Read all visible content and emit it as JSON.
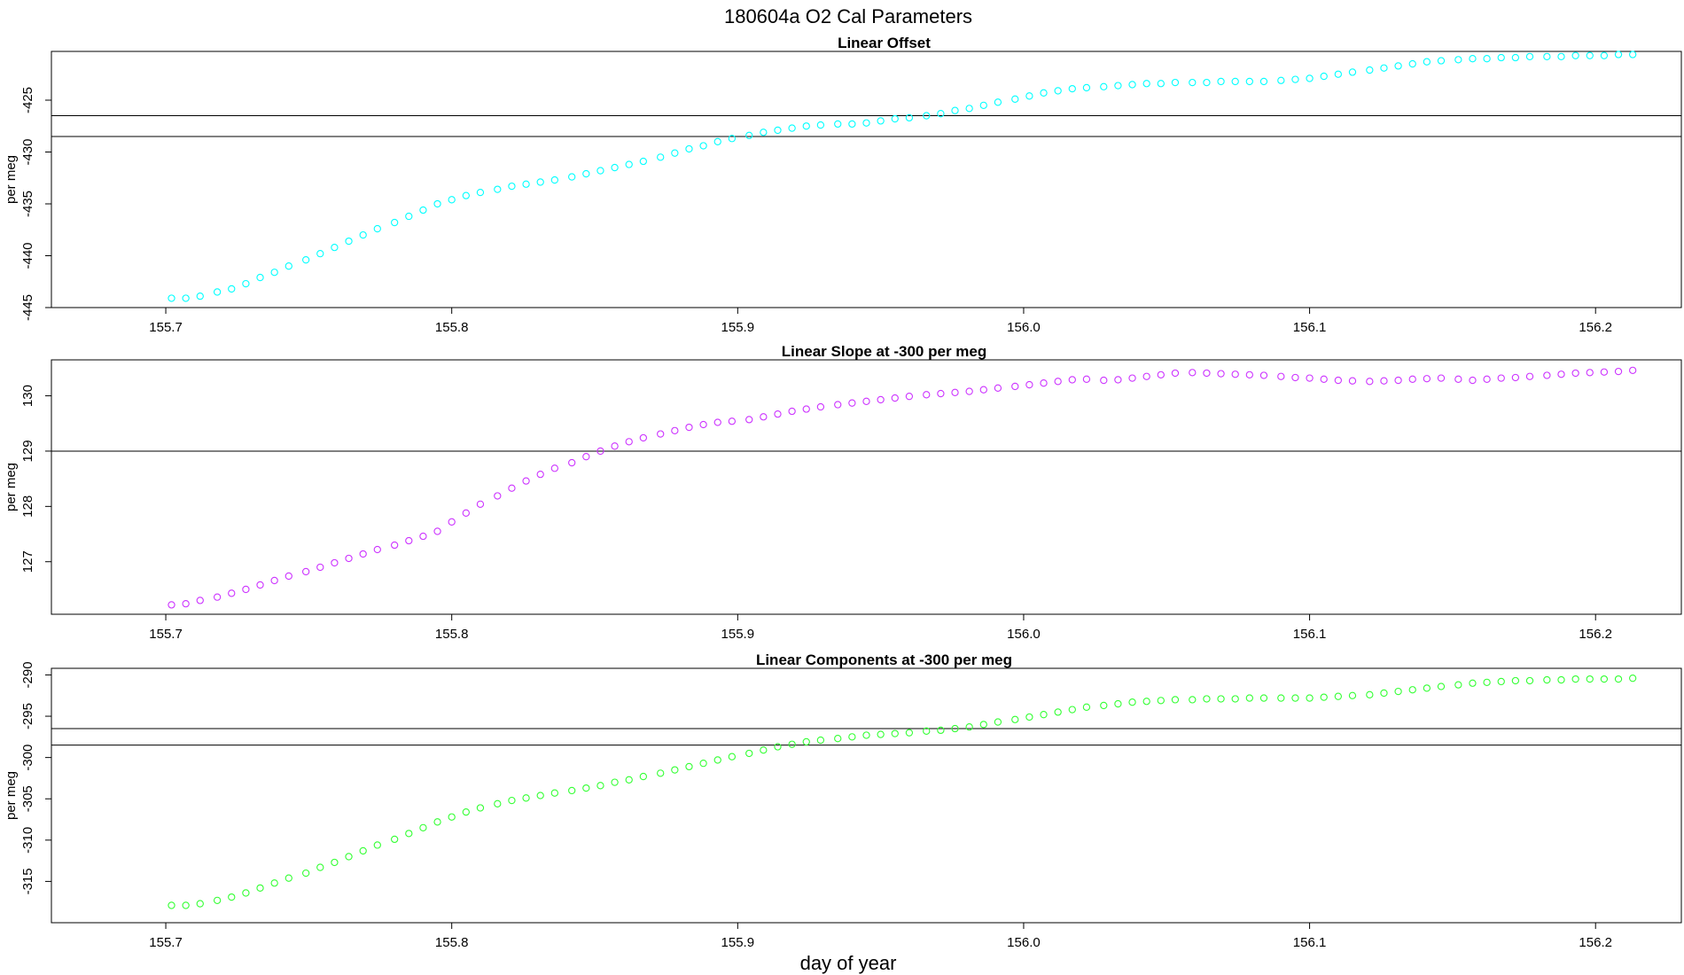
{
  "figure": {
    "title": "180604a   O2 Cal Parameters",
    "xlabel": "day of year"
  },
  "chart_data": [
    {
      "type": "scatter",
      "title": "Linear Offset",
      "ylabel": "per meg",
      "color": "#00ffff",
      "xlim": [
        155.66,
        156.23
      ],
      "ylim": [
        -445,
        -420.3
      ],
      "x_ticks": [
        155.7,
        155.8,
        155.9,
        156.0,
        156.1,
        156.2
      ],
      "x_tick_labels": [
        "155.7",
        "155.8",
        "155.9",
        "156.0",
        "156.1",
        "156.2"
      ],
      "y_ticks": [
        -445,
        -440,
        -435,
        -430,
        -425
      ],
      "y_tick_labels": [
        "-445",
        "-440",
        "-435",
        "-430",
        "-425"
      ],
      "hlines": [
        -426.5,
        -428.5
      ],
      "x": [
        155.702,
        155.707,
        155.712,
        155.718,
        155.723,
        155.728,
        155.733,
        155.738,
        155.743,
        155.749,
        155.754,
        155.759,
        155.764,
        155.769,
        155.774,
        155.78,
        155.785,
        155.79,
        155.795,
        155.8,
        155.805,
        155.81,
        155.816,
        155.821,
        155.826,
        155.831,
        155.836,
        155.842,
        155.847,
        155.852,
        155.857,
        155.862,
        155.867,
        155.873,
        155.878,
        155.883,
        155.888,
        155.893,
        155.898,
        155.904,
        155.909,
        155.914,
        155.919,
        155.924,
        155.929,
        155.935,
        155.94,
        155.945,
        155.95,
        155.955,
        155.96,
        155.966,
        155.971,
        155.976,
        155.981,
        155.986,
        155.991,
        155.997,
        156.002,
        156.007,
        156.012,
        156.017,
        156.022,
        156.028,
        156.033,
        156.038,
        156.043,
        156.048,
        156.053,
        156.059,
        156.064,
        156.069,
        156.074,
        156.079,
        156.084,
        156.09,
        156.095,
        156.1,
        156.105,
        156.11,
        156.115,
        156.121,
        156.126,
        156.131,
        156.136,
        156.141,
        156.146,
        156.152,
        156.157,
        156.162,
        156.167,
        156.172,
        156.177,
        156.183,
        156.188,
        156.193,
        156.198,
        156.203,
        156.208,
        156.213
      ],
      "y": [
        -444.1,
        -444.1,
        -443.9,
        -443.5,
        -443.2,
        -442.7,
        -442.1,
        -441.6,
        -441.0,
        -440.4,
        -439.8,
        -439.2,
        -438.6,
        -438.0,
        -437.4,
        -436.8,
        -436.2,
        -435.6,
        -435.0,
        -434.6,
        -434.2,
        -433.9,
        -433.6,
        -433.3,
        -433.1,
        -432.9,
        -432.7,
        -432.4,
        -432.1,
        -431.8,
        -431.5,
        -431.2,
        -430.9,
        -430.5,
        -430.1,
        -429.7,
        -429.4,
        -429.0,
        -428.7,
        -428.4,
        -428.1,
        -427.9,
        -427.7,
        -427.5,
        -427.4,
        -427.3,
        -427.3,
        -427.2,
        -427.0,
        -426.8,
        -426.7,
        -426.5,
        -426.3,
        -426.0,
        -425.8,
        -425.5,
        -425.2,
        -424.9,
        -424.6,
        -424.3,
        -424.1,
        -423.9,
        -423.8,
        -423.7,
        -423.6,
        -423.5,
        -423.4,
        -423.4,
        -423.3,
        -423.3,
        -423.3,
        -423.2,
        -423.2,
        -423.2,
        -423.2,
        -423.1,
        -423.0,
        -422.9,
        -422.7,
        -422.5,
        -422.3,
        -422.1,
        -421.9,
        -421.7,
        -421.5,
        -421.3,
        -421.2,
        -421.1,
        -421.0,
        -421.0,
        -420.9,
        -420.9,
        -420.8,
        -420.8,
        -420.8,
        -420.7,
        -420.7,
        -420.7,
        -420.6,
        -420.6
      ]
    },
    {
      "type": "scatter",
      "title": "Linear Slope at -300 per meg",
      "ylabel": "per meg",
      "color": "#cc33ff",
      "xlim": [
        155.66,
        156.23
      ],
      "ylim": [
        126.05,
        130.65
      ],
      "x_ticks": [
        155.7,
        155.8,
        155.9,
        156.0,
        156.1,
        156.2
      ],
      "x_tick_labels": [
        "155.7",
        "155.8",
        "155.9",
        "156.0",
        "156.1",
        "156.2"
      ],
      "y_ticks": [
        127,
        128,
        129,
        130
      ],
      "y_tick_labels": [
        "127",
        "128",
        "129",
        "130"
      ],
      "hlines": [
        129.0
      ],
      "x": [
        155.702,
        155.707,
        155.712,
        155.718,
        155.723,
        155.728,
        155.733,
        155.738,
        155.743,
        155.749,
        155.754,
        155.759,
        155.764,
        155.769,
        155.774,
        155.78,
        155.785,
        155.79,
        155.795,
        155.8,
        155.805,
        155.81,
        155.816,
        155.821,
        155.826,
        155.831,
        155.836,
        155.842,
        155.847,
        155.852,
        155.857,
        155.862,
        155.867,
        155.873,
        155.878,
        155.883,
        155.888,
        155.893,
        155.898,
        155.904,
        155.909,
        155.914,
        155.919,
        155.924,
        155.929,
        155.935,
        155.94,
        155.945,
        155.95,
        155.955,
        155.96,
        155.966,
        155.971,
        155.976,
        155.981,
        155.986,
        155.991,
        155.997,
        156.002,
        156.007,
        156.012,
        156.017,
        156.022,
        156.028,
        156.033,
        156.038,
        156.043,
        156.048,
        156.053,
        156.059,
        156.064,
        156.069,
        156.074,
        156.079,
        156.084,
        156.09,
        156.095,
        156.1,
        156.105,
        156.11,
        156.115,
        156.121,
        156.126,
        156.131,
        156.136,
        156.141,
        156.146,
        156.152,
        156.157,
        156.162,
        156.167,
        156.172,
        156.177,
        156.183,
        156.188,
        156.193,
        156.198,
        156.203,
        156.208,
        156.213
      ],
      "y": [
        126.22,
        126.24,
        126.3,
        126.36,
        126.43,
        126.5,
        126.58,
        126.66,
        126.74,
        126.82,
        126.9,
        126.98,
        127.06,
        127.14,
        127.22,
        127.3,
        127.38,
        127.46,
        127.55,
        127.72,
        127.88,
        128.04,
        128.19,
        128.33,
        128.46,
        128.58,
        128.69,
        128.79,
        128.9,
        129.0,
        129.09,
        129.17,
        129.24,
        129.31,
        129.37,
        129.43,
        129.48,
        129.52,
        129.54,
        129.57,
        129.62,
        129.67,
        129.72,
        129.76,
        129.8,
        129.84,
        129.87,
        129.9,
        129.93,
        129.96,
        129.99,
        130.02,
        130.04,
        130.06,
        130.08,
        130.11,
        130.14,
        130.17,
        130.2,
        130.23,
        130.26,
        130.29,
        130.3,
        130.28,
        130.29,
        130.32,
        130.35,
        130.38,
        130.41,
        130.42,
        130.41,
        130.4,
        130.39,
        130.38,
        130.37,
        130.35,
        130.33,
        130.32,
        130.3,
        130.28,
        130.27,
        130.26,
        130.27,
        130.28,
        130.3,
        130.31,
        130.32,
        130.3,
        130.28,
        130.3,
        130.32,
        130.33,
        130.35,
        130.37,
        130.39,
        130.41,
        130.42,
        130.43,
        130.44,
        130.46
      ]
    },
    {
      "type": "scatter",
      "title": "Linear Components at -300 per meg",
      "ylabel": "per meg",
      "color": "#33ff33",
      "xlim": [
        155.66,
        156.23
      ],
      "ylim": [
        -320,
        -289.2
      ],
      "x_ticks": [
        155.7,
        155.8,
        155.9,
        156.0,
        156.1,
        156.2
      ],
      "x_tick_labels": [
        "155.7",
        "155.8",
        "155.9",
        "156.0",
        "156.1",
        "156.2"
      ],
      "y_ticks": [
        -315,
        -310,
        -305,
        -300,
        -295,
        -290
      ],
      "y_tick_labels": [
        "-315",
        "-310",
        "-305",
        "-300",
        "-295",
        "-290"
      ],
      "hlines": [
        -296.5,
        -298.5
      ],
      "x": [
        155.702,
        155.707,
        155.712,
        155.718,
        155.723,
        155.728,
        155.733,
        155.738,
        155.743,
        155.749,
        155.754,
        155.759,
        155.764,
        155.769,
        155.774,
        155.78,
        155.785,
        155.79,
        155.795,
        155.8,
        155.805,
        155.81,
        155.816,
        155.821,
        155.826,
        155.831,
        155.836,
        155.842,
        155.847,
        155.852,
        155.857,
        155.862,
        155.867,
        155.873,
        155.878,
        155.883,
        155.888,
        155.893,
        155.898,
        155.904,
        155.909,
        155.914,
        155.919,
        155.924,
        155.929,
        155.935,
        155.94,
        155.945,
        155.95,
        155.955,
        155.96,
        155.966,
        155.971,
        155.976,
        155.981,
        155.986,
        155.991,
        155.997,
        156.002,
        156.007,
        156.012,
        156.017,
        156.022,
        156.028,
        156.033,
        156.038,
        156.043,
        156.048,
        156.053,
        156.059,
        156.064,
        156.069,
        156.074,
        156.079,
        156.084,
        156.09,
        156.095,
        156.1,
        156.105,
        156.11,
        156.115,
        156.121,
        156.126,
        156.131,
        156.136,
        156.141,
        156.146,
        156.152,
        156.157,
        156.162,
        156.167,
        156.172,
        156.177,
        156.183,
        156.188,
        156.193,
        156.198,
        156.203,
        156.208,
        156.213
      ],
      "y": [
        -317.9,
        -317.9,
        -317.7,
        -317.3,
        -316.9,
        -316.4,
        -315.8,
        -315.2,
        -314.6,
        -314.0,
        -313.3,
        -312.7,
        -312.0,
        -311.3,
        -310.6,
        -309.9,
        -309.2,
        -308.5,
        -307.8,
        -307.2,
        -306.6,
        -306.1,
        -305.6,
        -305.2,
        -304.9,
        -304.6,
        -304.3,
        -304.0,
        -303.7,
        -303.4,
        -303.0,
        -302.7,
        -302.3,
        -301.9,
        -301.5,
        -301.1,
        -300.7,
        -300.3,
        -299.9,
        -299.5,
        -299.1,
        -298.7,
        -298.4,
        -298.1,
        -297.9,
        -297.7,
        -297.5,
        -297.3,
        -297.2,
        -297.1,
        -297.0,
        -296.8,
        -296.7,
        -296.5,
        -296.3,
        -296.0,
        -295.7,
        -295.4,
        -295.1,
        -294.8,
        -294.5,
        -294.2,
        -293.9,
        -293.7,
        -293.5,
        -293.3,
        -293.2,
        -293.1,
        -293.0,
        -293.0,
        -292.9,
        -292.9,
        -292.9,
        -292.8,
        -292.8,
        -292.8,
        -292.8,
        -292.8,
        -292.7,
        -292.6,
        -292.5,
        -292.4,
        -292.2,
        -292.0,
        -291.8,
        -291.6,
        -291.4,
        -291.2,
        -291.0,
        -290.9,
        -290.8,
        -290.7,
        -290.7,
        -290.6,
        -290.6,
        -290.5,
        -290.5,
        -290.5,
        -290.5,
        -290.4
      ]
    }
  ]
}
